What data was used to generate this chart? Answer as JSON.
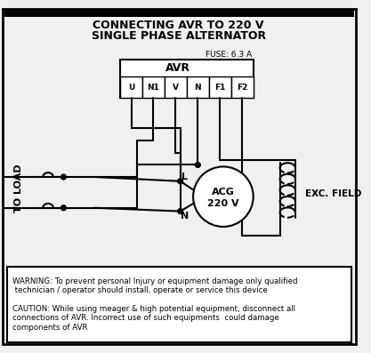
{
  "title_line1": "CONNECTING AVR TO 220 V",
  "title_line2": "SINGLE PHASE ALTERNATOR",
  "fuse_label": "FUSE: 6.3 A",
  "avr_label": "AVR",
  "avr_terminals": [
    "U",
    "N1",
    "V",
    "N",
    "F1",
    "F2"
  ],
  "acg_label": "ACG\n220 V",
  "exc_label": "EXC. FIELD",
  "l_label": "L",
  "n_label": "N",
  "load_label": "TO LOAD",
  "warning_text": "WARNING: To prevent personal Injury or equipment damage only qualified\n technician / operator should install, operate or service this device",
  "caution_text": "CAUTION: While using meager & high potential equipment, disconnect all\nconnections of AVR. Incorrect use of such equipments  could damage\ncomponents of AVR",
  "bg_color": "#f0f0f0",
  "line_color": "#000000",
  "text_color": "#000000",
  "box_bg": "#ffffff"
}
